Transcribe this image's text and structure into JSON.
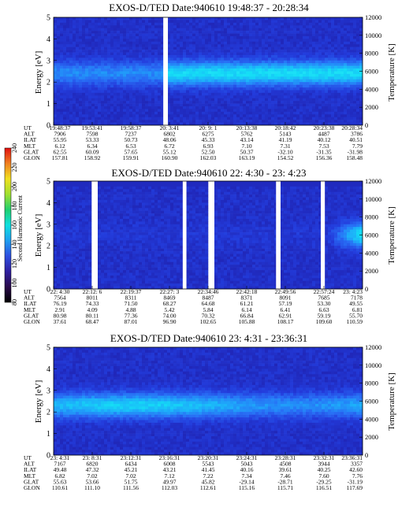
{
  "chart_data": [
    {
      "type": "heatmap",
      "title": "EXOS-D/TED  Date:940610  19:48:37 - 20:28:34",
      "ylabel": "Energy [eV]",
      "y2label": "Temperature [K]",
      "ylim": [
        0,
        5
      ],
      "y2lim": [
        0,
        12000
      ],
      "yticks": [
        "0",
        "1",
        "2",
        "3",
        "4",
        "5"
      ],
      "y2ticks": [
        "0",
        "2000",
        "4000",
        "6000",
        "8000",
        "10000",
        "12000"
      ],
      "band_center_ev": 2.4,
      "band_intensity": 0.8,
      "gaps": [
        [
          0.355,
          0.37
        ]
      ],
      "row_labels": [
        "UT",
        "ALT",
        "ILAT",
        "MLT",
        "GLAT",
        "GLON"
      ],
      "columns": [
        [
          "19:48:37",
          "7906",
          "55.95",
          "6.12",
          "62.55",
          "157.81"
        ],
        [
          "19:53:41",
          "7598",
          "53.33",
          "6.34",
          "60.09",
          "158.92"
        ],
        [
          "19:58:37",
          "7237",
          "50.73",
          "6.53",
          "57.65",
          "159.91"
        ],
        [
          "20: 3:41",
          "6802",
          "48.06",
          "6.72",
          "55.12",
          "160.90"
        ],
        [
          "20: 9: 1",
          "6275",
          "45.33",
          "6.93",
          "52.50",
          "162.03"
        ],
        [
          "20:13:38",
          "5762",
          "43.14",
          "7.10",
          "50.37",
          "163.19"
        ],
        [
          "20:18:42",
          "5143",
          "41.19",
          "7.31",
          "-32.10",
          "154.52"
        ],
        [
          "20:23:38",
          "4487",
          "40.12",
          "7.53",
          "-31.35",
          "156.36"
        ],
        [
          "20:28:34",
          "3786",
          "40.51",
          "7.79",
          "-31.98",
          "158.48"
        ]
      ]
    },
    {
      "type": "heatmap",
      "title": "EXOS-D/TED   Date:940610  22: 4:30 - 23: 4:23",
      "ylabel": "Energy [eV]",
      "y2label": "Temperature [K]",
      "ylim": [
        0,
        5
      ],
      "y2lim": [
        0,
        12000
      ],
      "yticks": [
        "0",
        "1",
        "2",
        "3",
        "4",
        "5"
      ],
      "y2ticks": [
        "0",
        "2000",
        "4000",
        "6000",
        "8000",
        "10000",
        "12000"
      ],
      "band_center_ev": 2.5,
      "band_intensity": 0.0,
      "gaps": [
        [
          0.125,
          0.138
        ],
        [
          0.418,
          0.43
        ],
        [
          0.505,
          0.518
        ],
        [
          0.72,
          0.733
        ],
        [
          0.865,
          0.878
        ]
      ],
      "row_labels": [
        "UT",
        "ALT",
        "ILAT",
        "MLT",
        "GLAT",
        "GLON"
      ],
      "columns": [
        [
          "22: 4:30",
          "7564",
          "76.19",
          "2.91",
          "80.98",
          "37.61"
        ],
        [
          "22:12: 6",
          "8011",
          "74.33",
          "4.09",
          "80.11",
          "68.47"
        ],
        [
          "22:19:37",
          "8311",
          "71.50",
          "4.88",
          "77.36",
          "87.01"
        ],
        [
          "22:27: 3",
          "8469",
          "68.27",
          "5.42",
          "74.00",
          "96.90"
        ],
        [
          "22:34:46",
          "8487",
          "64.68",
          "5.84",
          "70.32",
          "102.65"
        ],
        [
          "22:42:18",
          "8371",
          "61.21",
          "6.14",
          "66.84",
          "105.88"
        ],
        [
          "22:49:56",
          "8091",
          "57.19",
          "6.41",
          "62.91",
          "108.17"
        ],
        [
          "22:57:24",
          "7685",
          "53.30",
          "6.63",
          "59.19",
          "109.60"
        ],
        [
          "23: 4:23",
          "7178",
          "49.55",
          "6.81",
          "55.70",
          "110.59"
        ]
      ]
    },
    {
      "type": "heatmap",
      "title": "EXOS-D/TED   Date:940610  23: 4:31 - 23:36:31",
      "ylabel": "Energy [eV]",
      "y2label": "Temperature [K]",
      "ylim": [
        0,
        5
      ],
      "y2lim": [
        0,
        12000
      ],
      "yticks": [
        "0",
        "1",
        "2",
        "3",
        "4",
        "5"
      ],
      "y2ticks": [
        "0",
        "2000",
        "4000",
        "6000",
        "8000",
        "10000",
        "12000"
      ],
      "band_center_ev": 2.3,
      "band_intensity": 0.75,
      "gaps": [],
      "row_labels": [
        "UT",
        "ALT",
        "ILAT",
        "MLT",
        "GLAT",
        "GLON"
      ],
      "columns": [
        [
          "23: 4:31",
          "7167",
          "49.48",
          "6.82",
          "55.63",
          "110.61"
        ],
        [
          "23: 8:31",
          "6820",
          "47.32",
          "7.02",
          "53.66",
          "111.10"
        ],
        [
          "23:12:31",
          "6434",
          "45.21",
          "7.02",
          "51.75",
          "111.56"
        ],
        [
          "23:16:31",
          "6008",
          "43.21",
          "7.12",
          "49.97",
          "112.03"
        ],
        [
          "23:20:31",
          "5543",
          "41.45",
          "7.22",
          "45.82",
          "112.61"
        ],
        [
          "23:24:31",
          "5043",
          "40.16",
          "7.34",
          "-29.14",
          "115.16"
        ],
        [
          "23:28:31",
          "4508",
          "39.61",
          "7.46",
          "-28.71",
          "115.71"
        ],
        [
          "23:32:31",
          "3944",
          "40.25",
          "7.60",
          "-29.25",
          "116.51"
        ],
        [
          "23:36:31",
          "3357",
          "42.60",
          "7.76",
          "-31.19",
          "117.69"
        ]
      ]
    }
  ],
  "colorbar": {
    "label": "Second Harmonic Current",
    "ticks": [
      "80",
      "100",
      "120",
      "140",
      "160",
      "180",
      "200",
      "220",
      "240"
    ],
    "colors": [
      "#000000",
      "#2a0a4a",
      "#2f1fa0",
      "#2e4fe0",
      "#1f9ff0",
      "#10e0e0",
      "#20d070",
      "#a0e030",
      "#f0e020",
      "#f08020",
      "#e01010"
    ]
  }
}
